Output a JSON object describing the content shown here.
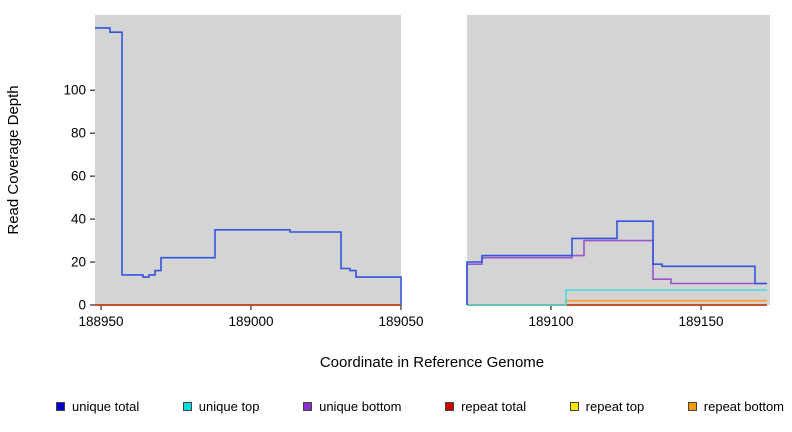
{
  "chart_data": {
    "type": "line",
    "title": "",
    "xlabel": "Coordinate in Reference Genome",
    "ylabel": "Read Coverage Depth",
    "xlim": [
      188948,
      189173
    ],
    "ylim": [
      0,
      135
    ],
    "x_ticks": [
      "188950",
      "189000",
      "189050",
      "189100",
      "189150"
    ],
    "x_tick_values": [
      188950,
      189000,
      189050,
      189100,
      189150
    ],
    "y_ticks": [
      "0",
      "20",
      "40",
      "60",
      "80",
      "100"
    ],
    "y_tick_values": [
      0,
      20,
      40,
      60,
      80,
      100
    ],
    "panel_bg": "#d4d4d4",
    "grid": false,
    "legend_position": "bottom",
    "gap_region": {
      "start": 189050,
      "end": 189072
    },
    "series": [
      {
        "name": "repeat top",
        "color": "#eedd00",
        "segments": [
          {
            "steps": [
              [
                188948,
                0
              ]
            ],
            "end": 189050
          },
          {
            "steps": [
              [
                189072,
                0
              ]
            ],
            "end": 189172
          }
        ]
      },
      {
        "name": "repeat bottom",
        "color": "#ff9922",
        "segments": [
          {
            "steps": [
              [
                189072,
                0
              ],
              [
                189105,
                2
              ]
            ],
            "end": 189172
          }
        ]
      },
      {
        "name": "repeat total",
        "color": "#bb2222",
        "segments": [
          {
            "steps": [
              [
                188948,
                0
              ]
            ],
            "end": 189050
          },
          {
            "steps": [
              [
                189072,
                0
              ]
            ],
            "end": 189172
          }
        ]
      },
      {
        "name": "unique top",
        "color": "#44dede",
        "segments": [
          {
            "steps": [
              [
                189072,
                0
              ],
              [
                189105,
                7
              ]
            ],
            "end": 189172
          }
        ]
      },
      {
        "name": "unique bottom",
        "color": "#9955cc",
        "segments": [
          {
            "steps": [
              [
                189072,
                0
              ],
              [
                189072,
                19
              ],
              [
                189077,
                22
              ],
              [
                189107,
                23
              ],
              [
                189111,
                30
              ],
              [
                189134,
                12
              ],
              [
                189140,
                10
              ]
            ],
            "end": 189172
          }
        ]
      },
      {
        "name": "unique total",
        "color": "#3355dd",
        "segments": [
          {
            "steps": [
              [
                188948,
                129
              ],
              [
                188953,
                127
              ],
              [
                188957,
                14
              ],
              [
                188964,
                13
              ],
              [
                188966,
                14
              ],
              [
                188968,
                16
              ],
              [
                188970,
                22
              ],
              [
                188988,
                35
              ],
              [
                189013,
                34
              ],
              [
                189030,
                17
              ],
              [
                189033,
                16
              ],
              [
                189035,
                13
              ],
              [
                189050,
                0
              ]
            ],
            "end": 189050
          },
          {
            "steps": [
              [
                189072,
                0
              ],
              [
                189072,
                20
              ],
              [
                189077,
                23
              ],
              [
                189107,
                31
              ],
              [
                189122,
                39
              ],
              [
                189134,
                19
              ],
              [
                189137,
                18
              ],
              [
                189168,
                10
              ]
            ],
            "end": 189172
          }
        ]
      }
    ],
    "legend": [
      {
        "label": "unique total",
        "color": "#0000cc"
      },
      {
        "label": "unique top",
        "color": "#00dddd"
      },
      {
        "label": "unique bottom",
        "color": "#8833cc"
      },
      {
        "label": "repeat total",
        "color": "#cc0000"
      },
      {
        "label": "repeat top",
        "color": "#f5e600"
      },
      {
        "label": "repeat bottom",
        "color": "#ff9900"
      }
    ]
  }
}
